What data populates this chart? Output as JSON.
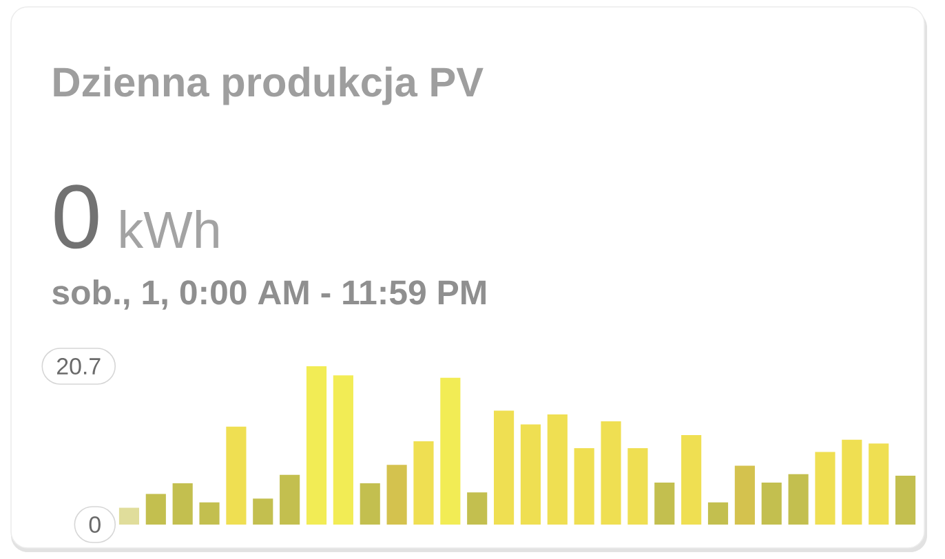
{
  "chart_data": {
    "type": "bar",
    "title": "Dzienna produkcja PV",
    "annotations": [
      "0",
      "kWh",
      "sob., 1, 0:00 AM - 11:59 PM"
    ],
    "categories": [
      null,
      null,
      null,
      null,
      null,
      null,
      null,
      null,
      null,
      null,
      null,
      null,
      null,
      null,
      null,
      null,
      null,
      null,
      null,
      null,
      null,
      null,
      null,
      null,
      null,
      null,
      null,
      null,
      null,
      null
    ],
    "values": [
      2.2,
      4.0,
      5.4,
      2.9,
      12.8,
      3.4,
      6.5,
      20.7,
      19.5,
      5.4,
      7.8,
      10.9,
      19.2,
      4.2,
      14.9,
      13.1,
      14.4,
      10.0,
      13.5,
      10.0,
      5.5,
      11.7,
      2.9,
      7.7,
      5.5,
      6.6,
      9.5,
      11.1,
      10.6,
      6.4
    ],
    "colors": [
      "#e0dd9b",
      "#c3bf4f",
      "#c3bf4f",
      "#c3bf4f",
      "#efdf52",
      "#c3bf4f",
      "#c3bf4f",
      "#f2ec55",
      "#f2ec55",
      "#c3bf4f",
      "#d4c24e",
      "#efdf52",
      "#f2ec55",
      "#c3bf4f",
      "#efdf52",
      "#efdf52",
      "#efdf52",
      "#efdf52",
      "#efdf52",
      "#efdf52",
      "#c3bf4f",
      "#efdf52",
      "#c3bf4f",
      "#d4c24e",
      "#c3bf4f",
      "#c3bf4f",
      "#efdf52",
      "#efdf52",
      "#efdf52",
      "#c3bf4f"
    ],
    "ylim": [
      0,
      20.7
    ],
    "yticks": [
      0,
      20.7
    ],
    "tick_labels": "y"
  }
}
